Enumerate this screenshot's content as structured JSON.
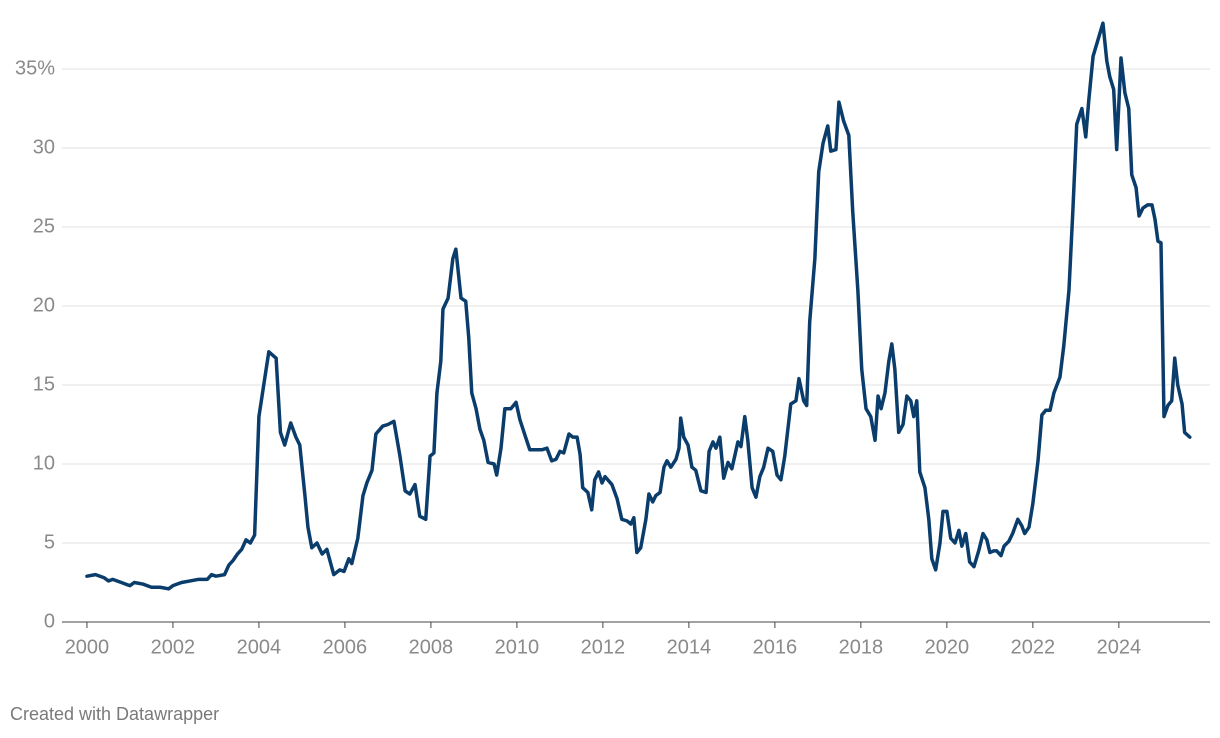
{
  "chart_data": {
    "type": "line",
    "color": "#0a3d6b",
    "grid": true,
    "credit": "Created with Datawrapper",
    "xlim": [
      1999.42,
      2026.12
    ],
    "ylim": [
      0,
      38.5
    ],
    "xticks": [
      2000,
      2002,
      2004,
      2006,
      2008,
      2010,
      2012,
      2014,
      2016,
      2018,
      2020,
      2022,
      2024
    ],
    "yticks": [
      0,
      5,
      10,
      15,
      20,
      25,
      30,
      {
        "value": 35,
        "label": "35%"
      }
    ],
    "x": [
      2000.0,
      2000.2,
      2000.4,
      2000.5,
      2000.6,
      2000.8,
      2001.0,
      2001.1,
      2001.3,
      2001.5,
      2001.7,
      2001.9,
      2002.0,
      2002.2,
      2002.4,
      2002.6,
      2002.8,
      2002.9,
      2003.0,
      2003.2,
      2003.3,
      2003.4,
      2003.5,
      2003.6,
      2003.7,
      2003.8,
      2003.9,
      2004.0,
      2004.14,
      2004.23,
      2004.4,
      2004.5,
      2004.6,
      2004.74,
      2004.86,
      2004.95,
      2005.07,
      2005.14,
      2005.23,
      2005.35,
      2005.47,
      2005.58,
      2005.74,
      2005.88,
      2005.98,
      2006.09,
      2006.16,
      2006.3,
      2006.42,
      2006.51,
      2006.63,
      2006.72,
      2006.88,
      2007.0,
      2007.14,
      2007.28,
      2007.4,
      2007.51,
      2007.63,
      2007.74,
      2007.88,
      2007.98,
      2008.07,
      2008.14,
      2008.23,
      2008.28,
      2008.4,
      2008.51,
      2008.58,
      2008.7,
      2008.81,
      2008.88,
      2008.95,
      2009.05,
      2009.14,
      2009.23,
      2009.33,
      2009.47,
      2009.53,
      2009.63,
      2009.72,
      2009.86,
      2009.98,
      2010.07,
      2010.19,
      2010.3,
      2010.47,
      2010.58,
      2010.7,
      2010.81,
      2010.91,
      2011.0,
      2011.09,
      2011.21,
      2011.3,
      2011.4,
      2011.47,
      2011.53,
      2011.65,
      2011.74,
      2011.81,
      2011.9,
      2011.98,
      2012.05,
      2012.21,
      2012.33,
      2012.44,
      2012.56,
      2012.65,
      2012.72,
      2012.79,
      2012.88,
      2013.0,
      2013.07,
      2013.16,
      2013.23,
      2013.33,
      2013.42,
      2013.49,
      2013.58,
      2013.7,
      2013.77,
      2013.81,
      2013.88,
      2013.98,
      2014.07,
      2014.16,
      2014.28,
      2014.4,
      2014.47,
      2014.56,
      2014.63,
      2014.72,
      2014.81,
      2014.91,
      2015.0,
      2015.14,
      2015.21,
      2015.3,
      2015.37,
      2015.47,
      2015.56,
      2015.65,
      2015.74,
      2015.84,
      2015.95,
      2016.05,
      2016.14,
      2016.23,
      2016.37,
      2016.49,
      2016.56,
      2016.67,
      2016.74,
      2016.81,
      2016.93,
      2017.02,
      2017.12,
      2017.23,
      2017.3,
      2017.42,
      2017.49,
      2017.6,
      2017.72,
      2017.81,
      2017.93,
      2018.02,
      2018.12,
      2018.23,
      2018.33,
      2018.4,
      2018.47,
      2018.56,
      2018.65,
      2018.72,
      2018.79,
      2018.88,
      2018.98,
      2019.07,
      2019.16,
      2019.23,
      2019.3,
      2019.37,
      2019.49,
      2019.58,
      2019.65,
      2019.74,
      2019.84,
      2019.91,
      2020.0,
      2020.09,
      2020.19,
      2020.28,
      2020.35,
      2020.44,
      2020.53,
      2020.63,
      2020.74,
      2020.84,
      2020.93,
      2021.0,
      2021.09,
      2021.16,
      2021.26,
      2021.33,
      2021.44,
      2021.53,
      2021.65,
      2021.74,
      2021.81,
      2021.91,
      2022.0,
      2022.12,
      2022.21,
      2022.3,
      2022.4,
      2022.49,
      2022.63,
      2022.72,
      2022.84,
      2022.93,
      2023.02,
      2023.14,
      2023.23,
      2023.3,
      2023.4,
      2023.51,
      2023.63,
      2023.72,
      2023.79,
      2023.88,
      2023.95,
      2024.05,
      2024.14,
      2024.23,
      2024.3,
      2024.4,
      2024.47,
      2024.56,
      2024.67,
      2024.77,
      2024.84,
      2024.91,
      2024.98,
      2025.05,
      2025.14,
      2025.23,
      2025.3,
      2025.37,
      2025.47,
      2025.53,
      2025.65
    ],
    "values": [
      2.9,
      3.0,
      2.8,
      2.6,
      2.7,
      2.5,
      2.3,
      2.5,
      2.4,
      2.2,
      2.2,
      2.1,
      2.3,
      2.5,
      2.6,
      2.7,
      2.7,
      3.0,
      2.9,
      3.0,
      3.6,
      3.9,
      4.3,
      4.6,
      5.2,
      5.0,
      5.5,
      13.0,
      15.5,
      17.1,
      16.7,
      12.0,
      11.2,
      12.6,
      11.7,
      11.2,
      8.0,
      6.0,
      4.7,
      5.0,
      4.3,
      4.6,
      3.0,
      3.3,
      3.2,
      4.0,
      3.7,
      5.3,
      8.0,
      8.8,
      9.6,
      11.9,
      12.4,
      12.5,
      12.7,
      10.5,
      8.3,
      8.1,
      8.7,
      6.7,
      6.5,
      10.5,
      10.7,
      14.5,
      16.5,
      19.8,
      20.5,
      23.0,
      23.6,
      20.5,
      20.3,
      18.0,
      14.5,
      13.5,
      12.2,
      11.5,
      10.1,
      10.0,
      9.3,
      11.0,
      13.5,
      13.5,
      13.9,
      12.8,
      11.8,
      10.9,
      10.9,
      10.9,
      11.0,
      10.2,
      10.3,
      10.8,
      10.7,
      11.9,
      11.7,
      11.7,
      10.6,
      8.5,
      8.2,
      7.1,
      9.0,
      9.5,
      8.8,
      9.2,
      8.7,
      7.8,
      6.5,
      6.4,
      6.2,
      6.6,
      4.4,
      4.7,
      6.5,
      8.1,
      7.6,
      8.0,
      8.2,
      9.8,
      10.2,
      9.8,
      10.3,
      11.0,
      12.9,
      11.7,
      11.2,
      9.8,
      9.6,
      8.3,
      8.2,
      10.8,
      11.4,
      11.0,
      11.7,
      9.1,
      10.1,
      9.7,
      11.4,
      11.1,
      13.0,
      11.5,
      8.5,
      7.9,
      9.2,
      9.8,
      11.0,
      10.8,
      9.3,
      9.0,
      10.5,
      13.8,
      14.0,
      15.4,
      14.0,
      13.7,
      19.0,
      23.0,
      28.5,
      30.3,
      31.4,
      29.8,
      29.9,
      32.9,
      31.7,
      30.8,
      26.0,
      21.0,
      16.0,
      13.5,
      13.0,
      11.5,
      14.3,
      13.5,
      14.5,
      16.5,
      17.6,
      16.0,
      12.0,
      12.5,
      14.3,
      14.0,
      13.0,
      14.0,
      9.5,
      8.5,
      6.5,
      4.0,
      3.3,
      5.0,
      7.0,
      7.0,
      5.3,
      5.0,
      5.8,
      4.8,
      5.6,
      3.8,
      3.5,
      4.5,
      5.6,
      5.2,
      4.4,
      4.5,
      4.5,
      4.2,
      4.8,
      5.1,
      5.6,
      6.5,
      6.1,
      5.6,
      6.0,
      7.5,
      10.2,
      13.1,
      13.4,
      13.4,
      14.5,
      15.5,
      17.5,
      21.0,
      26.0,
      31.5,
      32.5,
      30.7,
      33.0,
      35.8,
      36.8,
      37.9,
      35.5,
      34.5,
      33.7,
      29.9,
      35.7,
      33.5,
      32.5,
      28.3,
      27.5,
      25.7,
      26.2,
      26.4,
      26.4,
      25.5,
      24.1,
      24.0,
      13.0,
      13.7,
      14.0,
      16.7,
      15.0,
      13.8,
      12.0,
      11.7
    ]
  }
}
